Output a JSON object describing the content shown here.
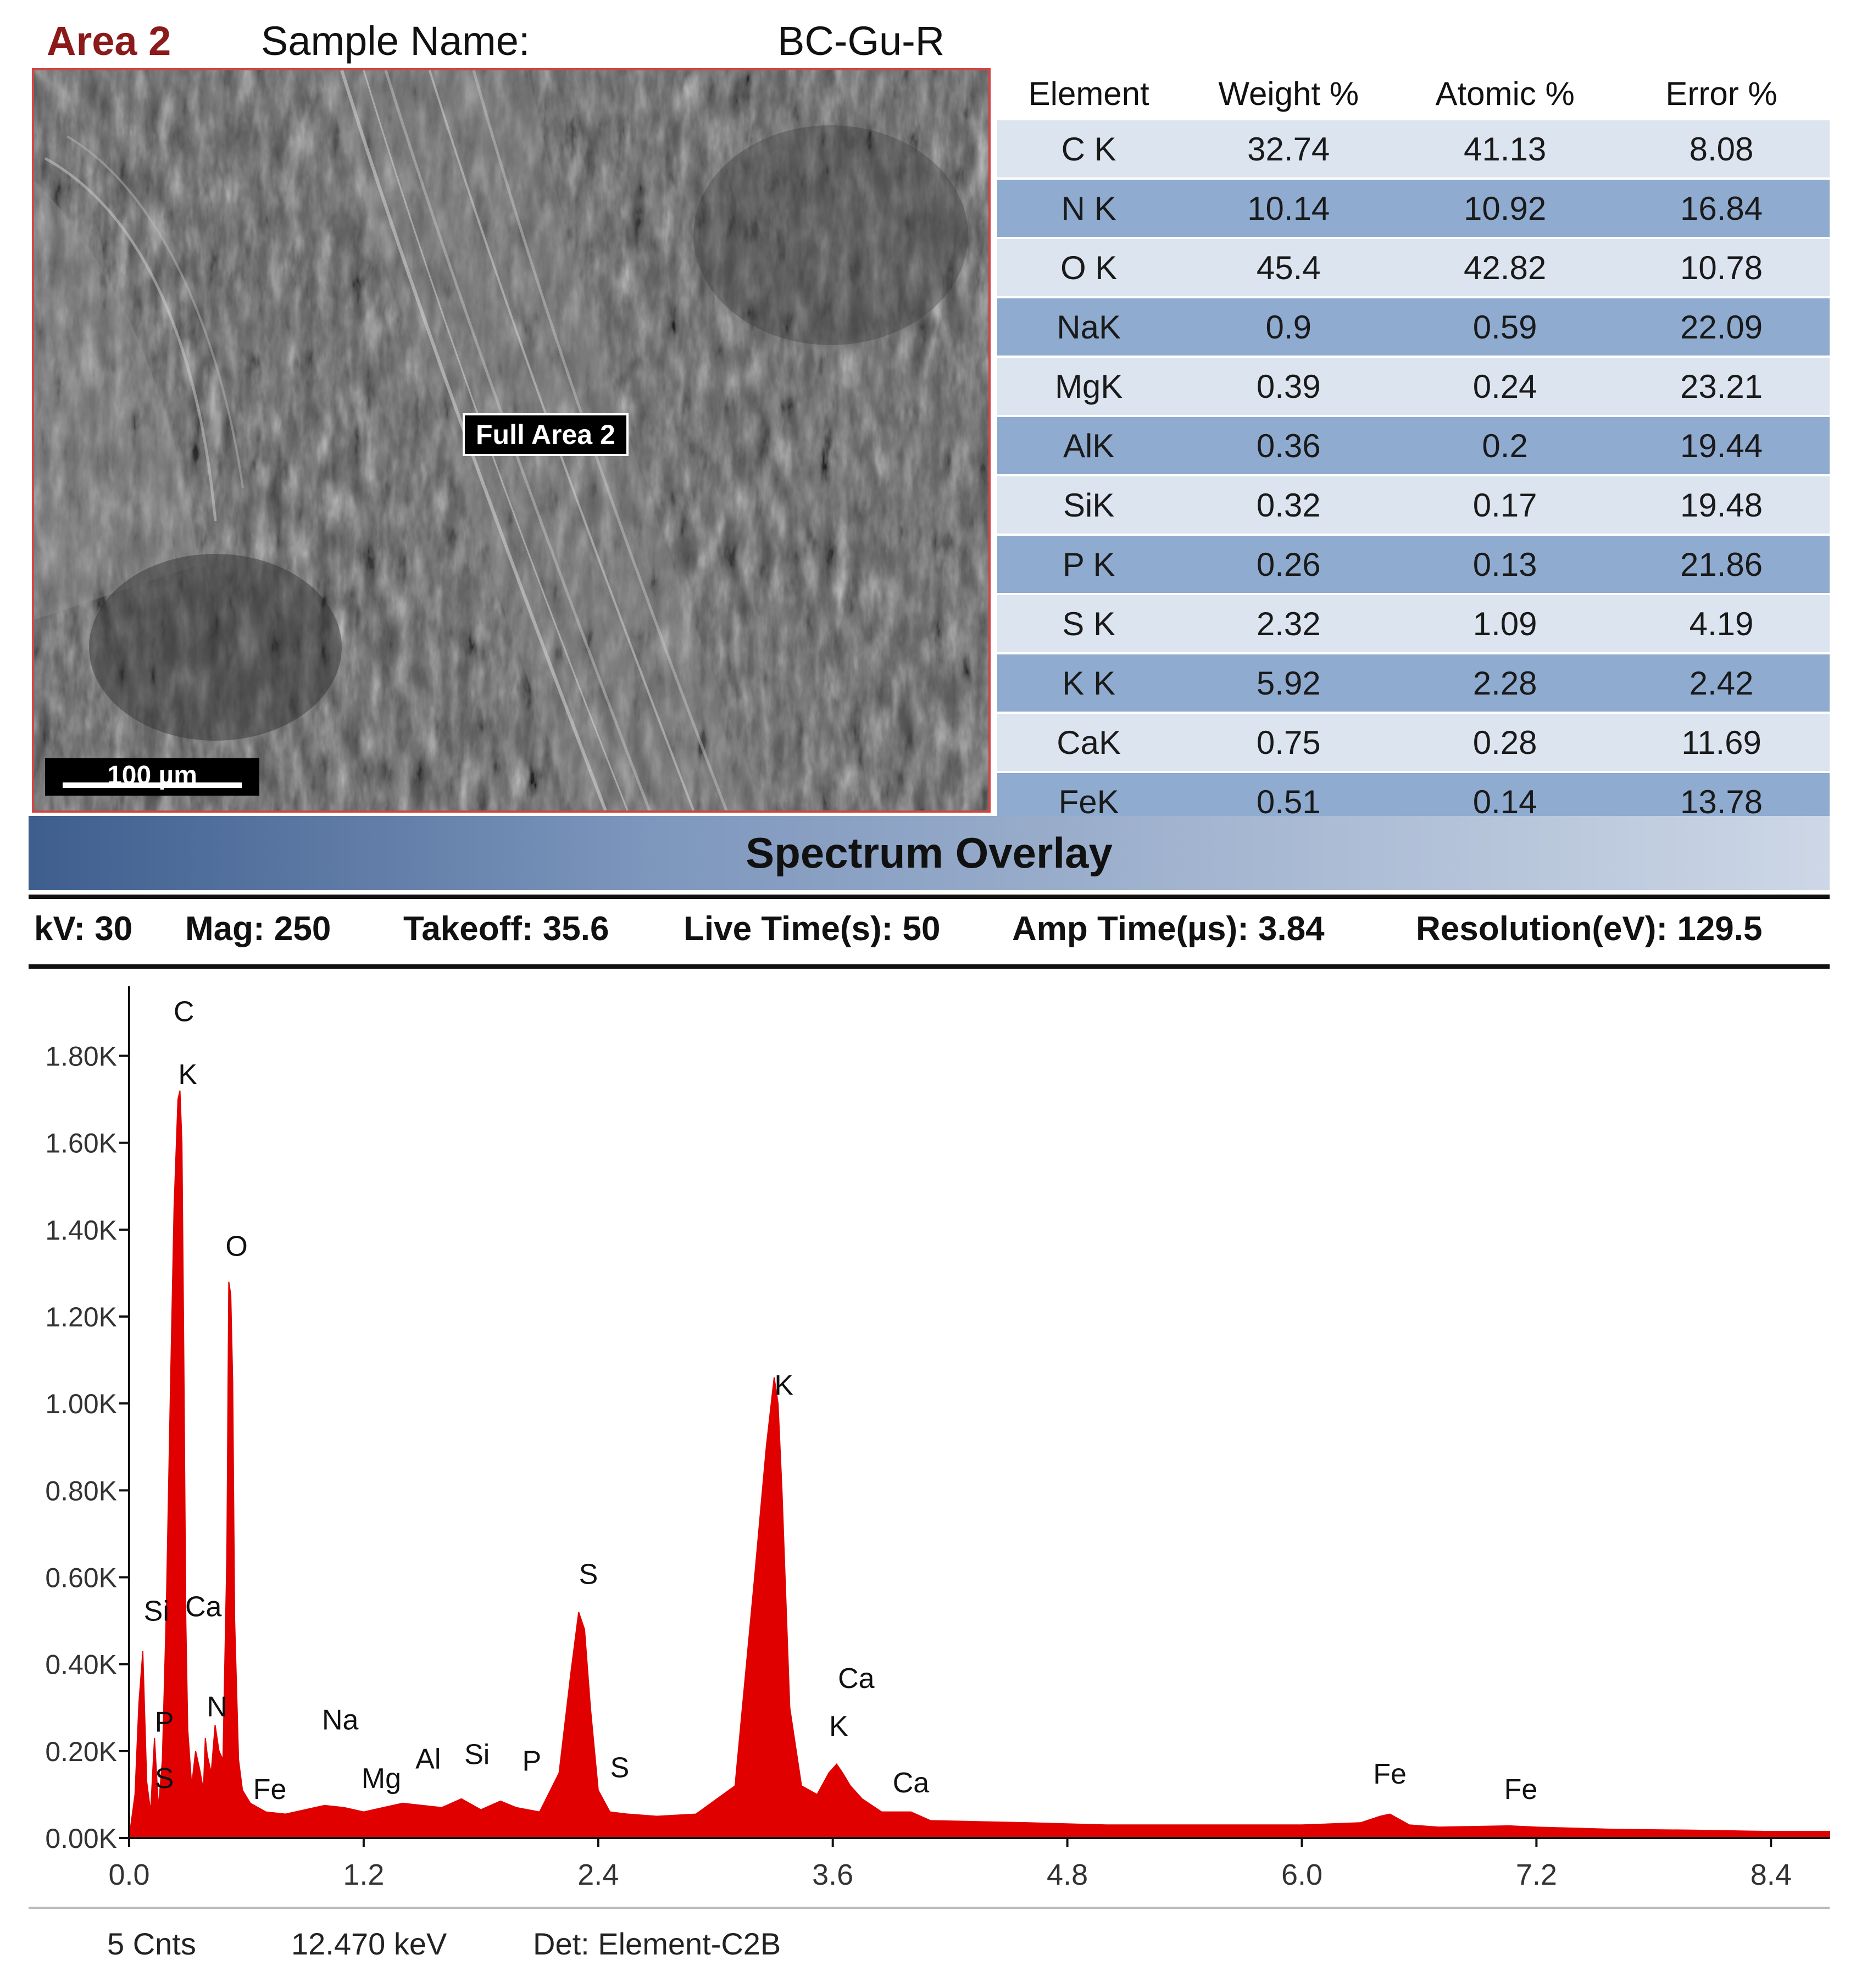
{
  "header": {
    "area_label": "Area 2",
    "sample_label": "Sample Name:",
    "sample_value": "BC-Gu-R"
  },
  "image": {
    "region_label": "Full Area 2",
    "scale_bar": "100 µm"
  },
  "composition_table": {
    "columns": [
      "Element",
      "Weight %",
      "Atomic %",
      "Error %"
    ],
    "rows": [
      [
        "C K",
        "32.74",
        "41.13",
        "8.08"
      ],
      [
        "N K",
        "10.14",
        "10.92",
        "16.84"
      ],
      [
        "O K",
        "45.4",
        "42.82",
        "10.78"
      ],
      [
        "NaK",
        "0.9",
        "0.59",
        "22.09"
      ],
      [
        "MgK",
        "0.39",
        "0.24",
        "23.21"
      ],
      [
        "AlK",
        "0.36",
        "0.2",
        "19.44"
      ],
      [
        "SiK",
        "0.32",
        "0.17",
        "19.48"
      ],
      [
        "P K",
        "0.26",
        "0.13",
        "21.86"
      ],
      [
        "S K",
        "2.32",
        "1.09",
        "4.19"
      ],
      [
        "K K",
        "5.92",
        "2.28",
        "2.42"
      ],
      [
        "CaK",
        "0.75",
        "0.28",
        "11.69"
      ],
      [
        "FeK",
        "0.51",
        "0.14",
        "13.78"
      ]
    ]
  },
  "overlay_title": "Spectrum Overlay",
  "parameters": [
    "kV: 30",
    "Mag: 250",
    "Takeoff: 35.6",
    "Live Time(s): 50",
    "Amp Time(µs): 3.84",
    "Resolution(eV): 129.5"
  ],
  "footer": {
    "counts": "5 Cnts",
    "energy": "12.470 keV",
    "detector": "Det: Element-C2B"
  },
  "colors": {
    "spectrum": "#e00000",
    "area_label": "#8b1a1a",
    "table_light": "#dbe4ef",
    "table_dark": "#8fabd0"
  },
  "chart_data": {
    "type": "area",
    "xlabel": "",
    "ylabel": "",
    "xlim": [
      0,
      8.7
    ],
    "ylim": [
      0,
      1960
    ],
    "x_ticks": [
      "0.0",
      "1.2",
      "2.4",
      "3.6",
      "4.8",
      "6.0",
      "7.2",
      "8.4"
    ],
    "y_ticks": [
      "0.00K",
      "0.20K",
      "0.40K",
      "0.60K",
      "0.80K",
      "1.00K",
      "1.20K",
      "1.40K",
      "1.60K",
      "1.80K"
    ],
    "series": [
      {
        "x": [
          0.0,
          0.03,
          0.05,
          0.07,
          0.09,
          0.11,
          0.13,
          0.15,
          0.17,
          0.19,
          0.21,
          0.23,
          0.25,
          0.26,
          0.27,
          0.28,
          0.29,
          0.3,
          0.32,
          0.34,
          0.36,
          0.38,
          0.39,
          0.4,
          0.42,
          0.44,
          0.46,
          0.48,
          0.5,
          0.51,
          0.52,
          0.53,
          0.54,
          0.56,
          0.58,
          0.62,
          0.7,
          0.8,
          0.9,
          1.0,
          1.1,
          1.2,
          1.3,
          1.4,
          1.5,
          1.6,
          1.7,
          1.8,
          1.9,
          1.98,
          2.1,
          2.2,
          2.26,
          2.3,
          2.33,
          2.36,
          2.4,
          2.46,
          2.55,
          2.7,
          2.9,
          3.1,
          3.2,
          3.26,
          3.3,
          3.32,
          3.34,
          3.38,
          3.44,
          3.52,
          3.58,
          3.62,
          3.65,
          3.69,
          3.75,
          3.85,
          4.0,
          4.1,
          4.3,
          4.6,
          5.0,
          5.5,
          6.0,
          6.3,
          6.4,
          6.45,
          6.55,
          6.7,
          7.06,
          7.2,
          7.6,
          8.0,
          8.4,
          8.7
        ],
        "y": [
          0,
          100,
          310,
          430,
          130,
          60,
          230,
          70,
          180,
          520,
          1000,
          1450,
          1700,
          1720,
          1600,
          1100,
          500,
          250,
          120,
          200,
          160,
          110,
          230,
          190,
          150,
          260,
          200,
          180,
          650,
          1280,
          1250,
          1050,
          500,
          180,
          110,
          80,
          60,
          55,
          65,
          75,
          70,
          60,
          70,
          80,
          75,
          70,
          90,
          65,
          85,
          70,
          60,
          150,
          380,
          520,
          480,
          300,
          110,
          60,
          55,
          50,
          55,
          120,
          600,
          900,
          1060,
          1000,
          800,
          300,
          120,
          100,
          150,
          170,
          150,
          120,
          90,
          60,
          60,
          40,
          38,
          35,
          30,
          30,
          30,
          35,
          50,
          55,
          30,
          25,
          28,
          25,
          20,
          18,
          15,
          15
        ]
      }
    ],
    "annotations": [
      {
        "label": "C",
        "x": 0.28,
        "y": 1880
      },
      {
        "label": "K",
        "x": 0.3,
        "y": 1735
      },
      {
        "label": "O",
        "x": 0.55,
        "y": 1340
      },
      {
        "label": "Si",
        "x": 0.14,
        "y": 500
      },
      {
        "label": "Ca",
        "x": 0.38,
        "y": 510
      },
      {
        "label": "P",
        "x": 0.18,
        "y": 245
      },
      {
        "label": "N",
        "x": 0.45,
        "y": 280
      },
      {
        "label": "S",
        "x": 0.18,
        "y": 115
      },
      {
        "label": "Fe",
        "x": 0.72,
        "y": 90
      },
      {
        "label": "Na",
        "x": 1.08,
        "y": 250
      },
      {
        "label": "Mg",
        "x": 1.29,
        "y": 115
      },
      {
        "label": "Al",
        "x": 1.53,
        "y": 160
      },
      {
        "label": "Si",
        "x": 1.78,
        "y": 170
      },
      {
        "label": "P",
        "x": 2.06,
        "y": 155
      },
      {
        "label": "S",
        "x": 2.35,
        "y": 585
      },
      {
        "label": "S",
        "x": 2.51,
        "y": 140
      },
      {
        "label": "K",
        "x": 3.35,
        "y": 1020
      },
      {
        "label": "Ca",
        "x": 3.72,
        "y": 345
      },
      {
        "label": "K",
        "x": 3.63,
        "y": 235
      },
      {
        "label": "Ca",
        "x": 4.0,
        "y": 105
      },
      {
        "label": "Fe",
        "x": 6.45,
        "y": 125
      },
      {
        "label": "Fe",
        "x": 7.12,
        "y": 90
      }
    ]
  }
}
